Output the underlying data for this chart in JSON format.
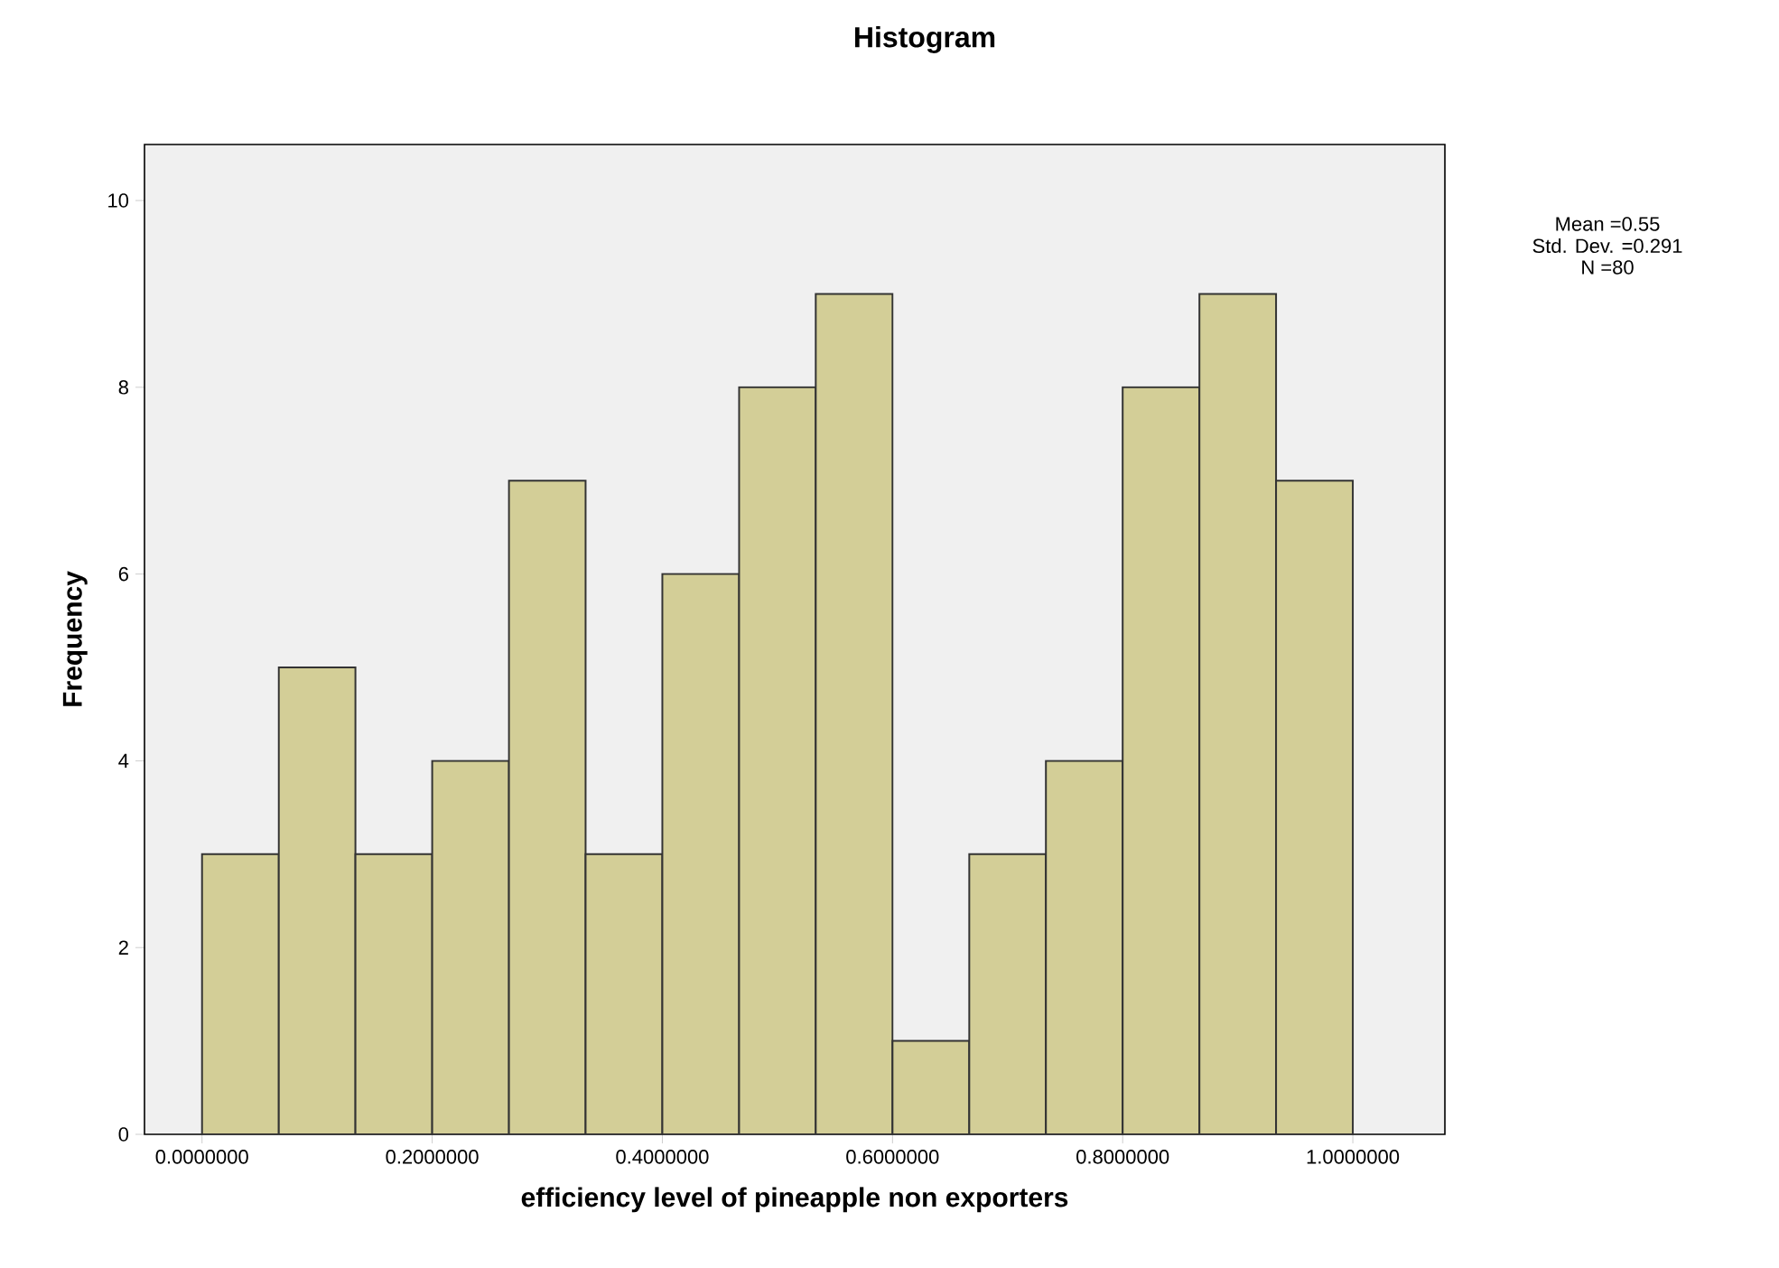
{
  "chart_data": {
    "type": "histogram",
    "title": "Histogram",
    "xlabel": "efficiency level of pineapple non exporters",
    "ylabel": "Frequency",
    "bins": [
      0,
      0.0667,
      0.1333,
      0.2,
      0.2667,
      0.3333,
      0.4,
      0.4667,
      0.5333,
      0.6,
      0.6667,
      0.7333,
      0.8,
      0.8667,
      0.9333,
      1.0
    ],
    "values": [
      3,
      5,
      3,
      4,
      7,
      3,
      6,
      8,
      9,
      1,
      3,
      4,
      8,
      9,
      7
    ],
    "color": "#d3ce97",
    "xlim": [
      -0.05,
      1.08
    ],
    "ylim": [
      0,
      10.6
    ],
    "xticks": [
      {
        "value": 0,
        "label": "0.0000000"
      },
      {
        "value": 0.2,
        "label": "0.2000000"
      },
      {
        "value": 0.4,
        "label": "0.4000000"
      },
      {
        "value": 0.6,
        "label": "0.6000000"
      },
      {
        "value": 0.8,
        "label": "0.8000000"
      },
      {
        "value": 1.0,
        "label": "1.0000000"
      }
    ],
    "yticks": [
      0,
      2,
      4,
      6,
      8,
      10
    ],
    "annotations": [
      "Mean =0.55",
      "Std. Dev. =0.291",
      "N =80"
    ]
  }
}
